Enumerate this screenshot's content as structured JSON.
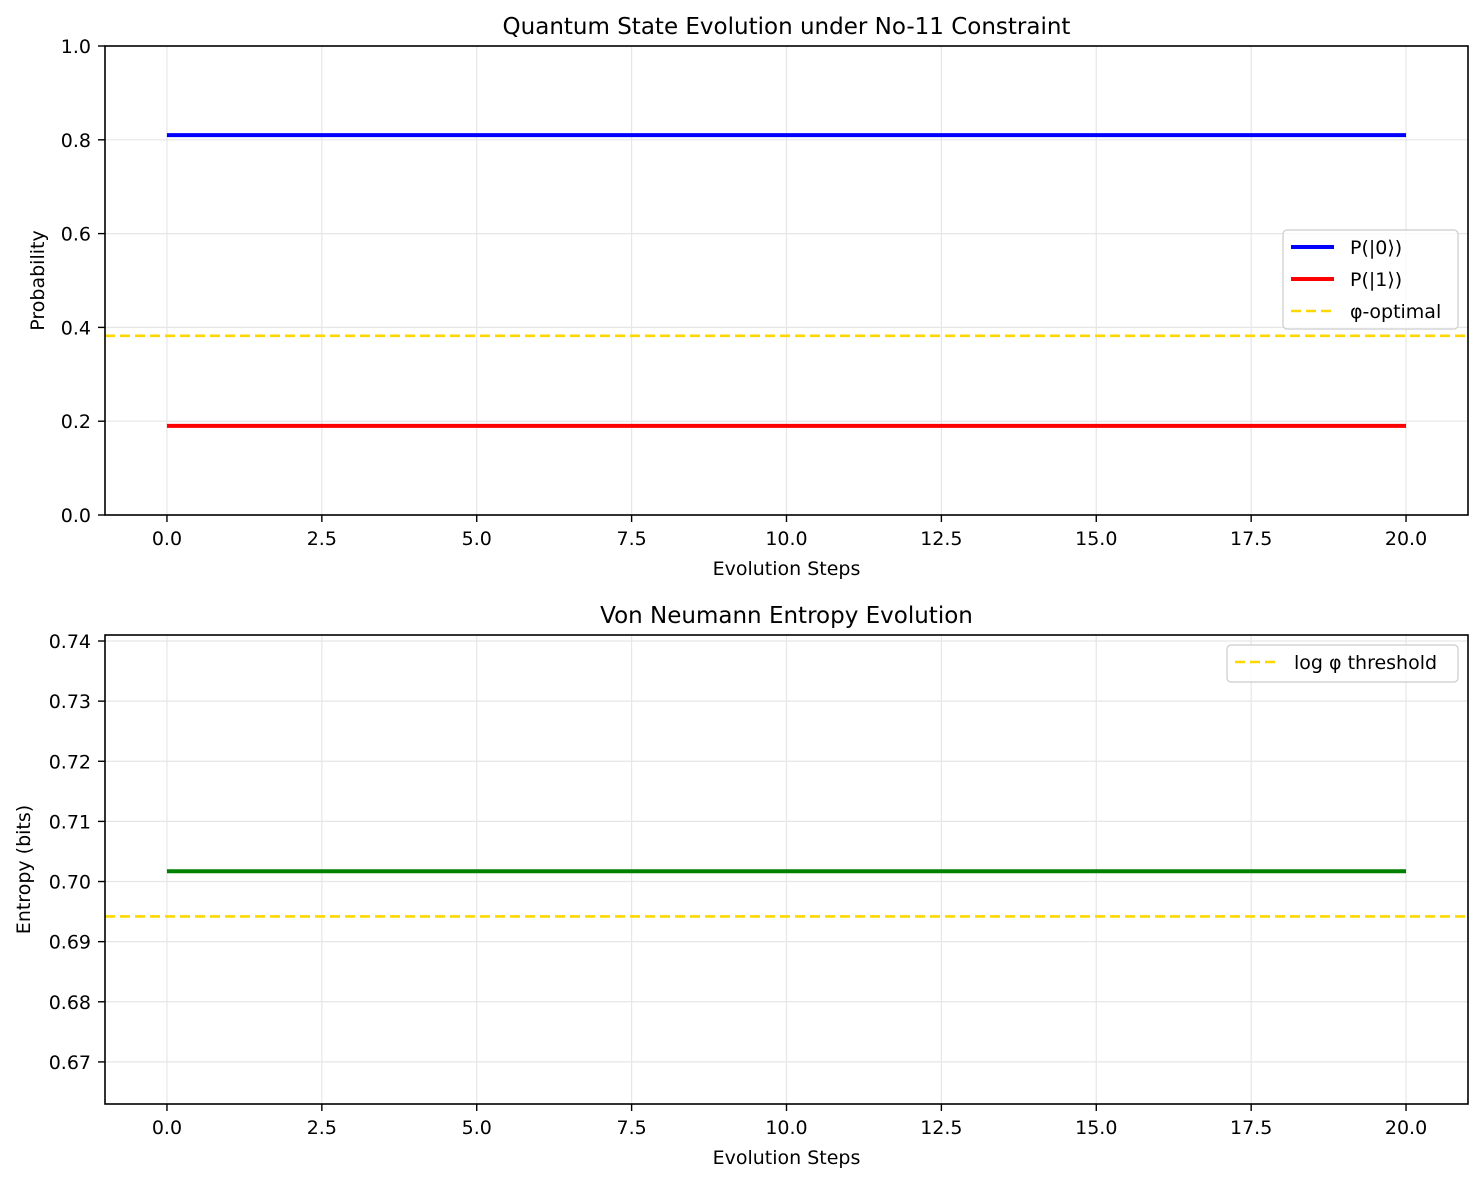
{
  "chart_data": [
    {
      "type": "line",
      "title": "Quantum State Evolution under No-11 Constraint",
      "xlabel": "Evolution Steps",
      "ylabel": "Probability",
      "xlim": [
        -1,
        21
      ],
      "ylim": [
        0,
        1
      ],
      "xticks": [
        0,
        2.5,
        5,
        7.5,
        10,
        12.5,
        15,
        17.5,
        20
      ],
      "xtick_labels": [
        "0.0",
        "2.5",
        "5.0",
        "7.5",
        "10.0",
        "12.5",
        "15.0",
        "17.5",
        "20.0"
      ],
      "yticks": [
        0,
        0.2,
        0.4,
        0.6,
        0.8,
        1.0
      ],
      "ytick_labels": [
        "0.0",
        "0.2",
        "0.4",
        "0.6",
        "0.8",
        "1.0"
      ],
      "grid": true,
      "legend": "center-right",
      "series": [
        {
          "name": "P(|0⟩)",
          "color": "#0000ff",
          "x": [
            0,
            20
          ],
          "y": [
            0.81,
            0.81
          ]
        },
        {
          "name": "P(|1⟩)",
          "color": "#ff0000",
          "x": [
            0,
            20
          ],
          "y": [
            0.19,
            0.19
          ]
        }
      ],
      "hlines": [
        {
          "name": "φ-optimal",
          "y": 0.382,
          "color": "#ffd700",
          "style": "dashed"
        }
      ]
    },
    {
      "type": "line",
      "title": "Von Neumann Entropy Evolution",
      "xlabel": "Evolution Steps",
      "ylabel": "Entropy (bits)",
      "xlim": [
        -1,
        21
      ],
      "ylim": [
        0.663,
        0.741
      ],
      "xticks": [
        0,
        2.5,
        5,
        7.5,
        10,
        12.5,
        15,
        17.5,
        20
      ],
      "xtick_labels": [
        "0.0",
        "2.5",
        "5.0",
        "7.5",
        "10.0",
        "12.5",
        "15.0",
        "17.5",
        "20.0"
      ],
      "yticks": [
        0.67,
        0.68,
        0.69,
        0.7,
        0.71,
        0.72,
        0.73,
        0.74
      ],
      "ytick_labels": [
        "0.67",
        "0.68",
        "0.69",
        "0.70",
        "0.71",
        "0.72",
        "0.73",
        "0.74"
      ],
      "grid": true,
      "legend": "top-right",
      "series": [
        {
          "color": "#008000",
          "x": [
            0,
            20
          ],
          "y": [
            0.7017,
            0.7017
          ]
        }
      ],
      "hlines": [
        {
          "name": "log φ threshold",
          "y": 0.6942,
          "color": "#ffd700",
          "style": "dashed"
        }
      ]
    }
  ]
}
